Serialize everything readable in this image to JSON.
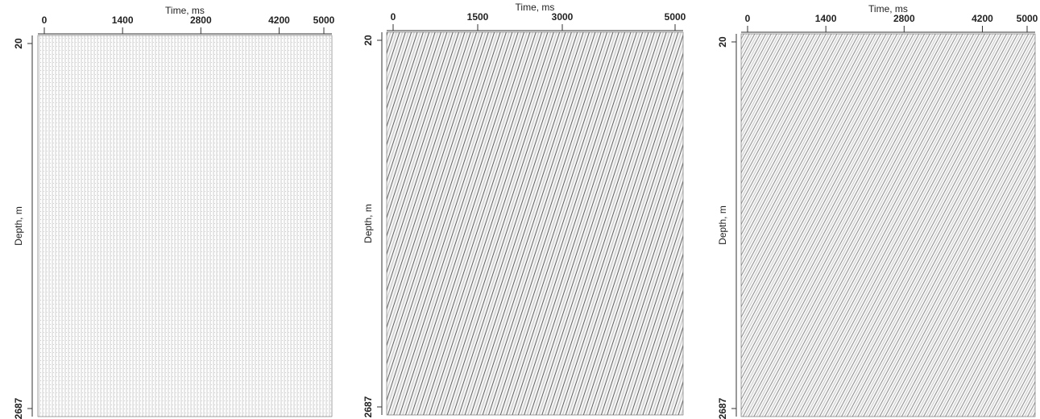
{
  "chart_data": [
    {
      "type": "seismic",
      "xlabel": "Time, ms",
      "ylabel": "Depth, m",
      "xlim": [
        0,
        5000
      ],
      "xticks": [
        0,
        1400,
        2800,
        4200,
        5000
      ],
      "ylim": [
        20,
        2687
      ],
      "yticks": [
        20,
        2687
      ]
    },
    {
      "type": "seismic",
      "xlabel": "Time, ms",
      "ylabel": "Depth, m",
      "xlim": [
        0,
        5000
      ],
      "xticks": [
        0,
        1500,
        3000,
        5000
      ],
      "ylim": [
        20,
        2687
      ],
      "yticks": [
        20,
        2687
      ]
    },
    {
      "type": "seismic",
      "xlabel": "Time, ms",
      "ylabel": "Depth, m",
      "xlim": [
        0,
        5000
      ],
      "xticks": [
        0,
        1400,
        2800,
        4200,
        5000
      ],
      "ylim": [
        20,
        2687
      ],
      "yticks": [
        20,
        2687
      ]
    }
  ]
}
